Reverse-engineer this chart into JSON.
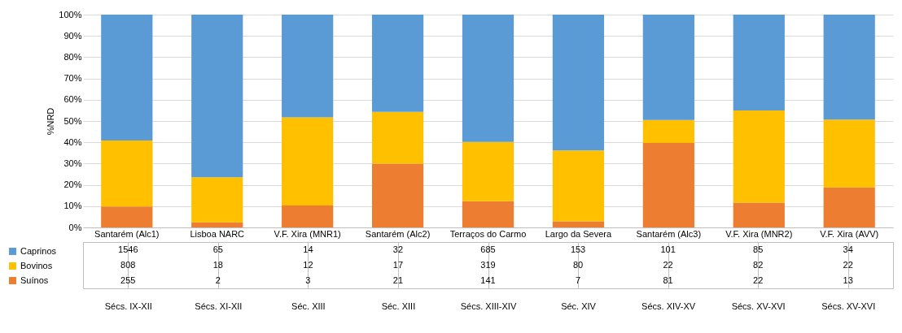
{
  "chart_data": {
    "type": "bar",
    "stacked": true,
    "ylabel": "%NRD",
    "categories": [
      "Santarém (Alc1)\nSécs. IX-XII",
      "Lisboa NARC\nSécs. XI-XII",
      "V.F. Xira (MNR1)\nSéc. XIII",
      "Santarém (Alc2)\nSéc. XIII",
      "Terraços do Carmo\nSécs. XIII-XIV",
      "Largo da Severa\nSéc. XIV",
      "Santarém (Alc3)\nSécs. XIV-XV",
      "V.F. Xira (MNR2)\nSécs. XV-XVI",
      "V.F. Xira (AVV)\nSécs. XV-XVI"
    ],
    "series": [
      {
        "name": "Suínos",
        "color": "#ed7d31",
        "values": [
          9.8,
          2.4,
          10.3,
          30.0,
          12.3,
          2.9,
          39.7,
          11.6,
          18.8
        ]
      },
      {
        "name": "Bovinos",
        "color": "#ffc000",
        "values": [
          31.0,
          21.2,
          41.4,
          24.3,
          27.9,
          33.3,
          10.8,
          43.4,
          31.9
        ]
      },
      {
        "name": "Caprinos",
        "color": "#5b9bd5",
        "values": [
          59.2,
          76.4,
          48.3,
          45.7,
          59.8,
          63.8,
          49.5,
          45.0,
          49.3
        ]
      }
    ],
    "annotations": [
      "1546",
      "65",
      "14",
      "32",
      "685",
      "153",
      "101",
      "85",
      "34",
      "808",
      "18",
      "12",
      "17",
      "319",
      "80",
      "22",
      "82",
      "22",
      "255",
      "2",
      "3",
      "21",
      "141",
      "7",
      "81",
      "22",
      "13"
    ],
    "ylim": [
      0,
      100
    ],
    "yticks": [
      {
        "value": 0,
        "label": "0%"
      },
      {
        "value": 10,
        "label": "10%"
      },
      {
        "value": 20,
        "label": "20%"
      },
      {
        "value": 30,
        "label": "30%"
      },
      {
        "value": 40,
        "label": "40%"
      },
      {
        "value": 50,
        "label": "50%"
      },
      {
        "value": 60,
        "label": "60%"
      },
      {
        "value": 70,
        "label": "70%"
      },
      {
        "value": 80,
        "label": "80%"
      },
      {
        "value": 90,
        "label": "90%"
      },
      {
        "value": 100,
        "label": "100%"
      }
    ],
    "grid": "y",
    "legend": "bottom left"
  }
}
